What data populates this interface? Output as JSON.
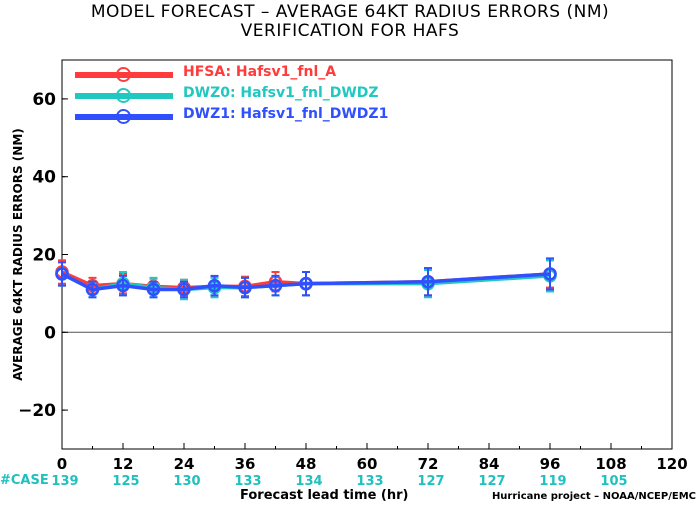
{
  "title_line1": "MODEL FORECAST – AVERAGE 64KT RADIUS ERRORS (NM)",
  "title_line2": "VERIFICATION FOR HAFS",
  "credit": "Hurricane project – NOAA/NCEP/EMC",
  "case_label": "#CASE",
  "chart_data": {
    "type": "line",
    "title": "MODEL FORECAST – AVERAGE 64KT RADIUS ERRORS (NM)",
    "subtitle": "VERIFICATION FOR HAFS",
    "xlabel": "Forecast lead time (hr)",
    "ylabel": "AVERAGE 64KT RADIUS ERRORS (NM)",
    "xlim": [
      0,
      120
    ],
    "ylim": [
      -30,
      70
    ],
    "xticks": [
      0,
      12,
      24,
      36,
      48,
      60,
      72,
      84,
      96,
      108,
      120
    ],
    "yticks": [
      -20,
      0,
      20,
      40,
      60
    ],
    "zero_line": true,
    "legend_position": "top-left",
    "case_counts": {
      "x": [
        0,
        12,
        24,
        36,
        48,
        60,
        72,
        84,
        96,
        108
      ],
      "values": [
        139,
        125,
        130,
        133,
        134,
        133,
        127,
        127,
        119,
        105
      ]
    },
    "series": [
      {
        "name": "HFSA: Hafsv1_fnl_A",
        "color": "#ff3b3b",
        "x": [
          0,
          6,
          12,
          18,
          24,
          30,
          36,
          42,
          48,
          72,
          96
        ],
        "values": [
          15.5,
          12.0,
          12.5,
          11.8,
          11.5,
          11.8,
          11.8,
          13.0,
          12.5,
          13.0,
          15.0
        ],
        "error": [
          3.0,
          2.0,
          2.5,
          2.0,
          2.0,
          2.5,
          2.5,
          2.5,
          3.0,
          3.5,
          3.5
        ]
      },
      {
        "name": "DWZ0: Hafsv1_fnl_DWDZ",
        "color": "#20c8c0",
        "x": [
          0,
          6,
          12,
          18,
          24,
          30,
          36,
          42,
          48,
          72,
          96
        ],
        "values": [
          15.0,
          11.0,
          12.5,
          11.5,
          11.0,
          11.5,
          11.5,
          12.0,
          12.5,
          12.5,
          14.5
        ],
        "error": [
          3.0,
          2.0,
          3.0,
          2.5,
          2.5,
          2.5,
          2.5,
          2.5,
          3.0,
          3.5,
          4.0
        ]
      },
      {
        "name": "DWZ1: Hafsv1_fnl_DWDZ1",
        "color": "#3050ff",
        "x": [
          0,
          6,
          12,
          18,
          24,
          30,
          36,
          42,
          48,
          72,
          96
        ],
        "values": [
          15.0,
          11.0,
          12.0,
          11.0,
          11.0,
          12.0,
          11.5,
          12.0,
          12.5,
          13.0,
          15.0
        ],
        "error": [
          3.0,
          2.0,
          2.5,
          2.0,
          2.0,
          2.5,
          2.5,
          2.5,
          3.0,
          3.5,
          4.0
        ]
      }
    ]
  }
}
